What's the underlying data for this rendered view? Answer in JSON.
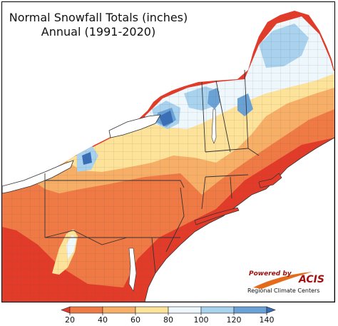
{
  "title": {
    "line1": "Normal Snowfall Totals (inches)",
    "line2": "Annual (1991-2020)"
  },
  "legend": {
    "ticks": [
      "20",
      "40",
      "60",
      "80",
      "100",
      "120",
      "140"
    ],
    "bins": [
      {
        "color": "#e23b29"
      },
      {
        "color": "#ef7a45"
      },
      {
        "color": "#f7ae66"
      },
      {
        "color": "#fde29a"
      },
      {
        "color": "#eef7fc"
      },
      {
        "color": "#a8d2ee"
      },
      {
        "color": "#6ba2d6"
      },
      {
        "color": "#3a6fb8"
      }
    ],
    "under_color": "#e23b29",
    "over_color": "#3a6fb8"
  },
  "logo": {
    "powered_by": "Powered by",
    "name": "ACIS",
    "org": "Regional Climate Centers"
  },
  "colors": {
    "lake": "#ffffff",
    "ocean": "#ffffff",
    "border": "#333333",
    "county": "#6a5a50"
  }
}
